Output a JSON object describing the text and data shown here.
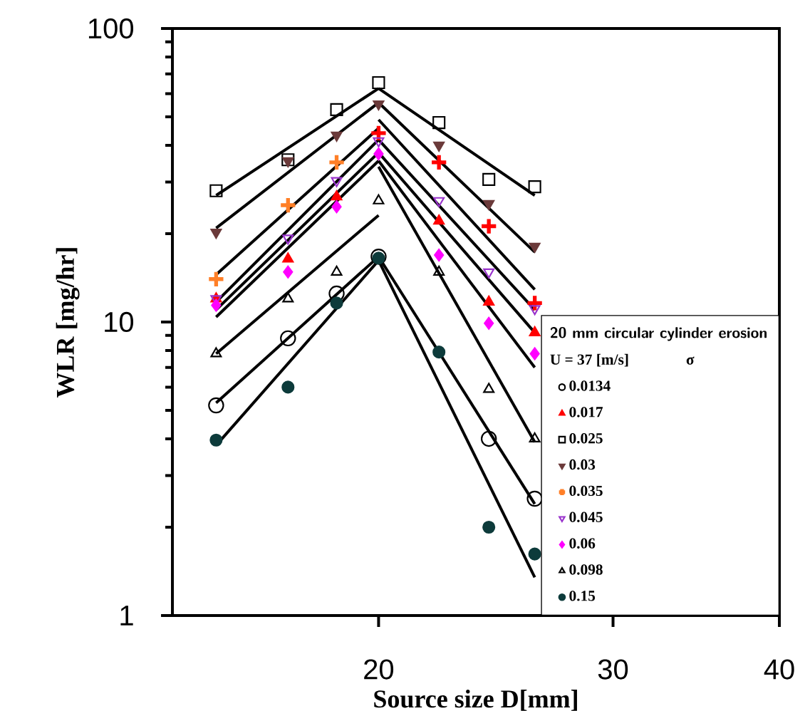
{
  "chart_data": {
    "type": "scatter",
    "xlabel": "Source size D[mm]",
    "ylabel": "WLR [mg/hr]",
    "legend_title": "20 mm circular cylinder erosion",
    "annotations": [
      "U = 37 [m/s]",
      "σ"
    ],
    "log": "xy",
    "xlim": [
      14,
      40
    ],
    "ylim": [
      1,
      100
    ],
    "xticks": [
      20,
      30,
      40
    ],
    "yticks": [
      1,
      10,
      100
    ],
    "grid": false,
    "legend": "bottom right",
    "x": [
      15.1,
      17.1,
      18.6,
      20,
      22.2,
      24.2,
      26.2
    ],
    "series": [
      {
        "name": "0.0134",
        "color": "#000000",
        "marker": "circle-open",
        "values": [
          5.2,
          8.8,
          12.5,
          16.7,
          null,
          4.0,
          2.5
        ]
      },
      {
        "name": "0.017",
        "color": "#ff0000",
        "marker": "triangle",
        "values": [
          12.0,
          16.4,
          26.7,
          null,
          22.1,
          11.7,
          9.2
        ]
      },
      {
        "name": "0.025",
        "color": "#000000",
        "marker": "square-open",
        "values": [
          28,
          35.7,
          52.9,
          65.4,
          47.8,
          30.6,
          28.9
        ]
      },
      {
        "name": "0.03",
        "color": "#6b3a3a",
        "marker": "triangle-down",
        "values": [
          20.2,
          35.4,
          43.3,
          55.3,
          40,
          25.3,
          18.1
        ]
      },
      {
        "name": "0.035",
        "color": "#ff7f27",
        "colors": [
          "#ff7f27",
          "#ff7f27",
          "#ff7f27",
          "#ff0000",
          "#ff0000",
          "#ff0000",
          "#ff0000"
        ],
        "marker": "plus",
        "values": [
          14,
          25,
          35,
          44,
          35,
          21.2,
          11.6
        ]
      },
      {
        "name": "0.045",
        "color": "#9933cc",
        "marker": "triangle-down-open",
        "values": [
          12,
          19.3,
          30.3,
          41.4,
          25.9,
          14.8,
          11.1
        ]
      },
      {
        "name": "0.06",
        "color": "#ff00ff",
        "marker": "diamond",
        "values": [
          11.4,
          14.8,
          24.7,
          37.4,
          16.9,
          9.9,
          7.8
        ]
      },
      {
        "name": "0.098",
        "color": "#000000",
        "marker": "triangle-open",
        "values": [
          7.8,
          12,
          14.8,
          25.9,
          14.8,
          5.9,
          4.0
        ]
      },
      {
        "name": "0.15",
        "color": "#0d3b3b",
        "marker": "circle",
        "values": [
          3.96,
          6.0,
          11.6,
          16.5,
          7.9,
          2.0,
          1.62
        ]
      },
      {
        "type": "line",
        "color": "#000000",
        "x": [
          15.1,
          20
        ],
        "values": [
          5.3,
          16.7
        ]
      },
      {
        "type": "line",
        "color": "#000000",
        "x": [
          20,
          26.2
        ],
        "values": [
          16.7,
          2.4
        ]
      },
      {
        "type": "line",
        "color": "#000000",
        "x": [
          15.1,
          20
        ],
        "values": [
          11.0,
          37.8
        ]
      },
      {
        "type": "line",
        "color": "#000000",
        "x": [
          20,
          26.2
        ],
        "values": [
          37.8,
          9.2
        ]
      },
      {
        "type": "line",
        "color": "#000000",
        "x": [
          15.1,
          20
        ],
        "values": [
          27,
          62.5
        ]
      },
      {
        "type": "line",
        "color": "#000000",
        "x": [
          20,
          26.2
        ],
        "values": [
          62.5,
          27
        ]
      },
      {
        "type": "line",
        "color": "#000000",
        "x": [
          15.1,
          20
        ],
        "values": [
          20.9,
          55.9
        ]
      },
      {
        "type": "line",
        "color": "#000000",
        "x": [
          20,
          26.2
        ],
        "values": [
          55.9,
          17.3
        ]
      },
      {
        "type": "line",
        "color": "#000000",
        "x": [
          15.1,
          20
        ],
        "values": [
          14.5,
          45.7
        ]
      },
      {
        "type": "line",
        "color": "#000000",
        "x": [
          20,
          26.2
        ],
        "values": [
          48.9,
          12.9
        ]
      },
      {
        "type": "line",
        "color": "#000000",
        "x": [
          15.1,
          20
        ],
        "values": [
          11.7,
          41.8
        ]
      },
      {
        "type": "line",
        "color": "#000000",
        "x": [
          20,
          26.2
        ],
        "values": [
          41.8,
          11.0
        ]
      },
      {
        "type": "line",
        "color": "#000000",
        "x": [
          15.1,
          20
        ],
        "values": [
          10.4,
          35.4
        ]
      },
      {
        "type": "line",
        "color": "#000000",
        "x": [
          20,
          26.2
        ],
        "values": [
          35.4,
          7.0
        ]
      },
      {
        "type": "line",
        "color": "#000000",
        "x": [
          15.1,
          20
        ],
        "values": [
          7.8,
          23.1
        ]
      },
      {
        "type": "line",
        "color": "#000000",
        "x": [
          20,
          26.2
        ],
        "values": [
          33.8,
          3.9
        ]
      },
      {
        "type": "line",
        "color": "#000000",
        "x": [
          15.1,
          20
        ],
        "values": [
          3.8,
          16.2
        ]
      },
      {
        "type": "line",
        "color": "#000000",
        "x": [
          20,
          26.2
        ],
        "values": [
          16.2,
          1.35
        ]
      }
    ]
  }
}
